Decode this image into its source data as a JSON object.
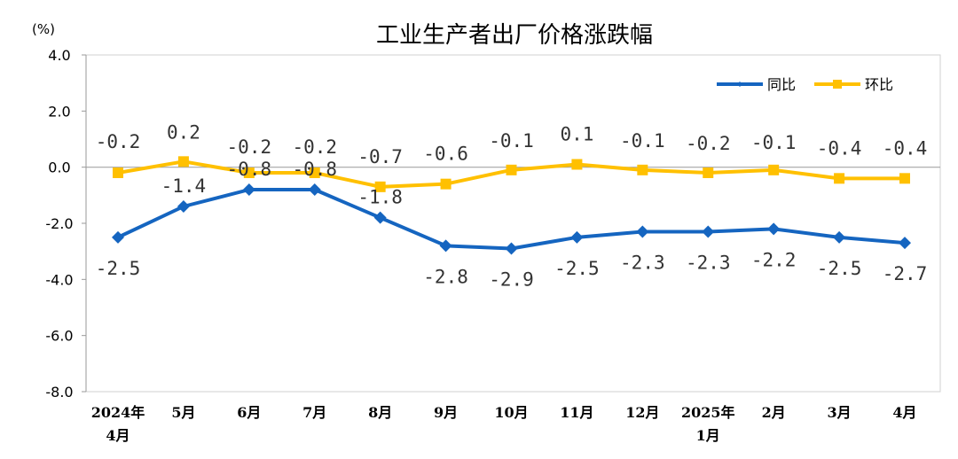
{
  "chart_data": {
    "type": "line",
    "title": "工业生产者出厂价格涨跌幅",
    "unit_label": "(%)",
    "ylim": [
      -8.0,
      4.0
    ],
    "yticks": [
      "4.0",
      "2.0",
      "0.0",
      "-2.0",
      "-4.0",
      "-6.0",
      "-8.0"
    ],
    "ytick_values": [
      4,
      2,
      0,
      -2,
      -4,
      -6,
      -8
    ],
    "categories": [
      [
        "2024年",
        "4月"
      ],
      [
        "5月"
      ],
      [
        "6月"
      ],
      [
        "7月"
      ],
      [
        "8月"
      ],
      [
        "9月"
      ],
      [
        "10月"
      ],
      [
        "11月"
      ],
      [
        "12月"
      ],
      [
        "2025年",
        "1月"
      ],
      [
        "2月"
      ],
      [
        "3月"
      ],
      [
        "4月"
      ]
    ],
    "legend_position": "top-right",
    "grid": false,
    "series": [
      {
        "name": "同比",
        "color": "#1565C0",
        "marker": "diamond",
        "values": [
          -2.5,
          -1.4,
          -0.8,
          -0.8,
          -1.8,
          -2.8,
          -2.9,
          -2.5,
          -2.3,
          -2.3,
          -2.2,
          -2.5,
          -2.7
        ],
        "labels": [
          "-2.5",
          "-1.4",
          "-0.8",
          "-0.8",
          "-1.8",
          "-2.8",
          "-2.9",
          "-2.5",
          "-2.3",
          "-2.3",
          "-2.2",
          "-2.5",
          "-2.7"
        ]
      },
      {
        "name": "环比",
        "color": "#FFC000",
        "marker": "square",
        "values": [
          -0.2,
          0.2,
          -0.2,
          -0.2,
          -0.7,
          -0.6,
          -0.1,
          0.1,
          -0.1,
          -0.2,
          -0.1,
          -0.4,
          -0.4
        ],
        "labels": [
          "-0.2",
          "0.2",
          "-0.2",
          "-0.2",
          "-0.7",
          "-0.6",
          "-0.1",
          "0.1",
          "-0.1",
          "-0.2",
          "-0.1",
          "-0.4",
          "-0.4"
        ]
      }
    ]
  }
}
